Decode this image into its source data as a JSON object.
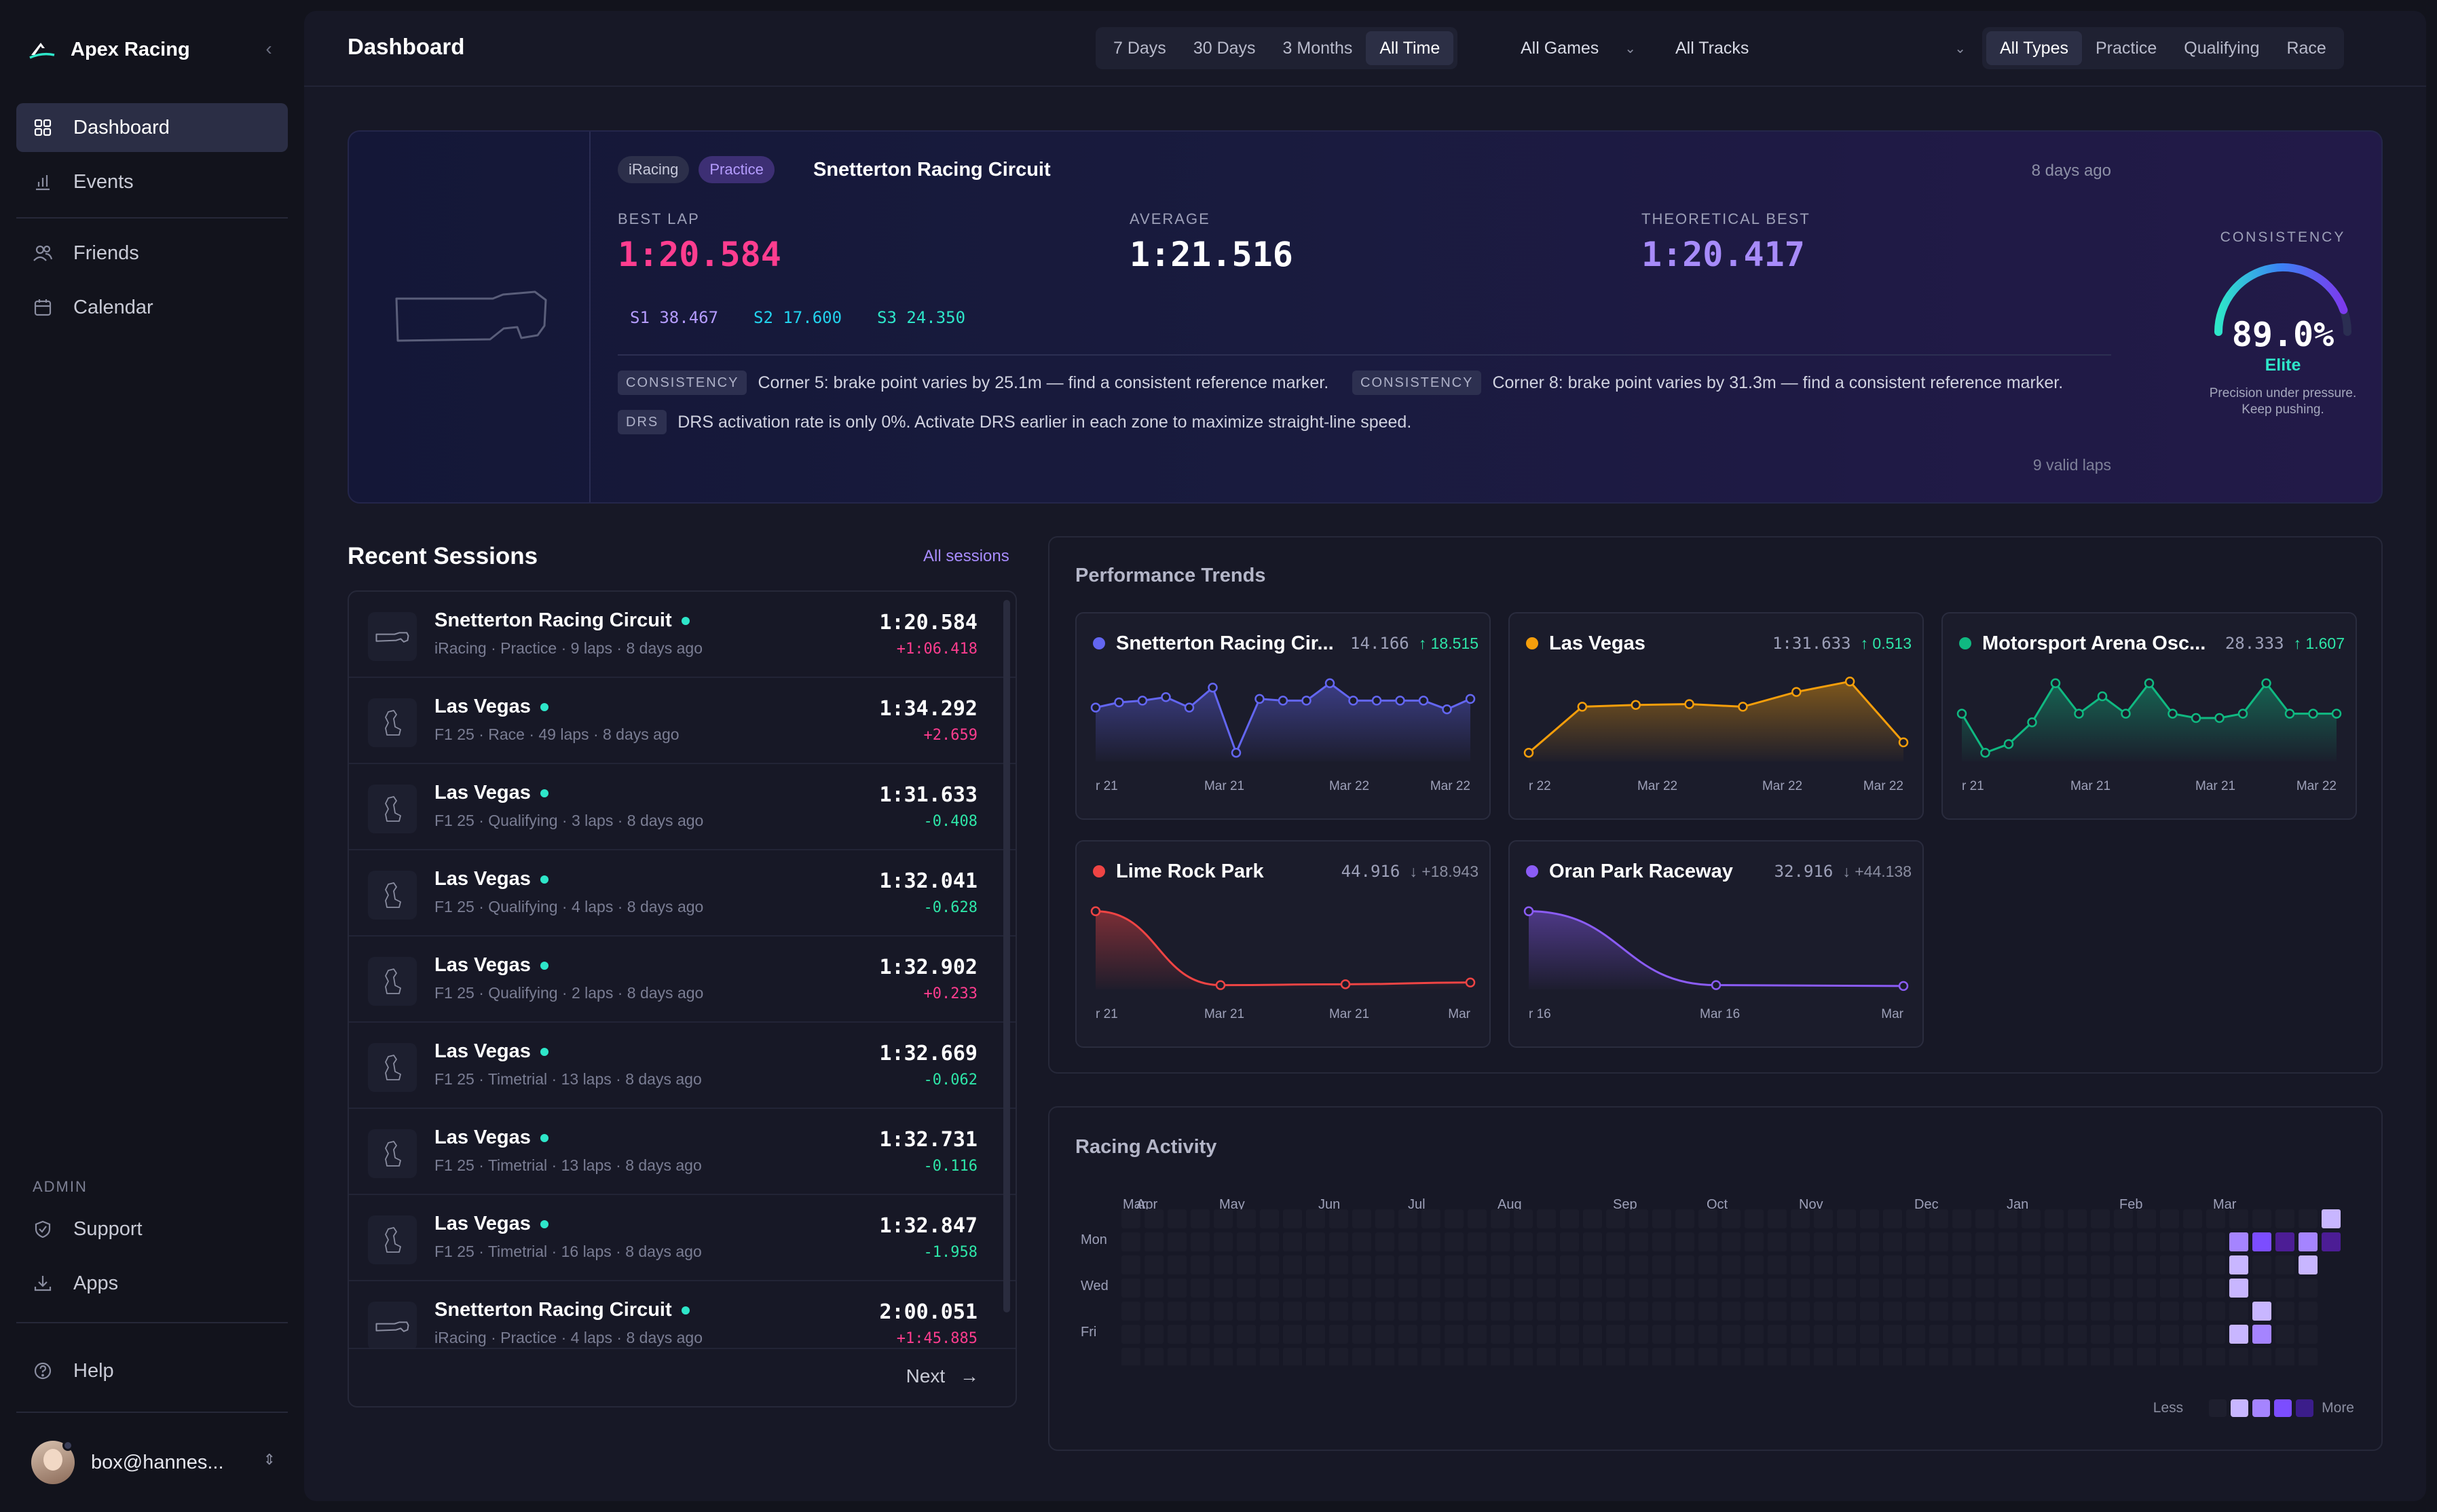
{
  "app": {
    "name": "Apex Racing"
  },
  "sidebar": {
    "items": [
      {
        "label": "Dashboard",
        "icon": "grid-icon",
        "active": true
      },
      {
        "label": "Events",
        "icon": "bar-chart-icon"
      },
      {
        "label": "Friends",
        "icon": "users-icon"
      },
      {
        "label": "Calendar",
        "icon": "calendar-icon"
      }
    ],
    "admin_label": "ADMIN",
    "admin_items": [
      {
        "label": "Support",
        "icon": "shield-icon"
      },
      {
        "label": "Apps",
        "icon": "download-icon"
      }
    ],
    "help": "Help",
    "user": "box@hannes..."
  },
  "header": {
    "title": "Dashboard",
    "ranges": [
      "7 Days",
      "30 Days",
      "3 Months",
      "All Time"
    ],
    "active_range": "All Time",
    "games": "All Games",
    "tracks": "All Tracks",
    "types": [
      "All Types",
      "Practice",
      "Qualifying",
      "Race"
    ],
    "active_type": "All Types"
  },
  "hero": {
    "game": "iRacing",
    "type": "Practice",
    "track": "Snetterton Racing Circuit",
    "ago": "8 days ago",
    "best_label": "BEST LAP",
    "best": "1:20.584",
    "avg_label": "AVERAGE",
    "avg": "1:21.516",
    "theo_label": "THEORETICAL BEST",
    "theo": "1:20.417",
    "sectors": [
      "S1 38.467",
      "S2 17.600",
      "S3 24.350"
    ],
    "tips": [
      {
        "tag": "CONSISTENCY",
        "text": "Corner 5: brake point varies by 25.1m — find a consistent reference marker."
      },
      {
        "tag": "CONSISTENCY",
        "text": "Corner 8: brake point varies by 31.3m — find a consistent reference marker."
      },
      {
        "tag": "DRS",
        "text": "DRS activation rate is only 0%. Activate DRS earlier in each zone to maximize straight-line speed."
      }
    ],
    "valid_laps": "9 valid laps",
    "consistency_label": "CONSISTENCY",
    "consistency": "89.0%",
    "consistency_value": 0.89,
    "tier": "Elite",
    "tagline_1": "Precision under pressure.",
    "tagline_2": "Keep pushing."
  },
  "recent": {
    "title": "Recent Sessions",
    "link": "All sessions",
    "next": "Next",
    "rows": [
      {
        "track": "Snetterton Racing Circuit",
        "meta": "iRacing · Practice · 9 laps · 8 days ago",
        "time": "1:20.584",
        "delta": "+1:06.418",
        "dir": "pos",
        "shape": "snetterton"
      },
      {
        "track": "Las Vegas",
        "meta": "F1 25 · Race · 49 laps · 8 days ago",
        "time": "1:34.292",
        "delta": "+2.659",
        "dir": "pos",
        "shape": "vegas"
      },
      {
        "track": "Las Vegas",
        "meta": "F1 25 · Qualifying · 3 laps · 8 days ago",
        "time": "1:31.633",
        "delta": "-0.408",
        "dir": "neg",
        "shape": "vegas"
      },
      {
        "track": "Las Vegas",
        "meta": "F1 25 · Qualifying · 4 laps · 8 days ago",
        "time": "1:32.041",
        "delta": "-0.628",
        "dir": "neg",
        "shape": "vegas"
      },
      {
        "track": "Las Vegas",
        "meta": "F1 25 · Qualifying · 2 laps · 8 days ago",
        "time": "1:32.902",
        "delta": "+0.233",
        "dir": "pos",
        "shape": "vegas"
      },
      {
        "track": "Las Vegas",
        "meta": "F1 25 · Timetrial · 13 laps · 8 days ago",
        "time": "1:32.669",
        "delta": "-0.062",
        "dir": "neg",
        "shape": "vegas"
      },
      {
        "track": "Las Vegas",
        "meta": "F1 25 · Timetrial · 13 laps · 8 days ago",
        "time": "1:32.731",
        "delta": "-0.116",
        "dir": "neg",
        "shape": "vegas"
      },
      {
        "track": "Las Vegas",
        "meta": "F1 25 · Timetrial · 16 laps · 8 days ago",
        "time": "1:32.847",
        "delta": "-1.958",
        "dir": "neg",
        "shape": "vegas"
      },
      {
        "track": "Snetterton Racing Circuit",
        "meta": "iRacing · Practice · 4 laps · 8 days ago",
        "time": "2:00.051",
        "delta": "+1:45.885",
        "dir": "pos",
        "shape": "snetterton"
      }
    ]
  },
  "trends": {
    "title": "Performance Trends",
    "cards": [
      {
        "name": "Snetterton Racing Cir...",
        "best": "14.166",
        "delta": "↑ 18.515",
        "dir": "up",
        "color": "#6366f1",
        "ticks": [
          "r 21",
          "Mar 21",
          "Mar 22",
          "Mar 22"
        ],
        "values": [
          0.62,
          0.68,
          0.7,
          0.74,
          0.62,
          0.85,
          0.1,
          0.72,
          0.7,
          0.7,
          0.9,
          0.7,
          0.7,
          0.7,
          0.7,
          0.6,
          0.72
        ]
      },
      {
        "name": "Las Vegas",
        "best": "1:31.633",
        "delta": "↑ 0.513",
        "dir": "up",
        "color": "#f59e0b",
        "ticks": [
          "r 22",
          "Mar 22",
          "Mar 22",
          "Mar 22"
        ],
        "values": [
          0.1,
          0.63,
          0.65,
          0.66,
          0.63,
          0.8,
          0.92,
          0.22
        ]
      },
      {
        "name": "Motorsport Arena Osc...",
        "best": "28.333",
        "delta": "↑ 1.607",
        "dir": "up",
        "color": "#10b981",
        "ticks": [
          "r 21",
          "Mar 21",
          "Mar 21",
          "Mar 22"
        ],
        "values": [
          0.55,
          0.1,
          0.2,
          0.45,
          0.9,
          0.55,
          0.75,
          0.55,
          0.9,
          0.55,
          0.5,
          0.5,
          0.55,
          0.9,
          0.55,
          0.55,
          0.55
        ]
      },
      {
        "name": "Lime Rock Park",
        "best": "44.916",
        "delta": "↓ +18.943",
        "dir": "down",
        "color": "#ef4444",
        "ticks": [
          "r 21",
          "Mar 21",
          "Mar 21",
          "Mar"
        ],
        "values": [
          0.9,
          0.05,
          0.06,
          0.08
        ]
      },
      {
        "name": "Oran Park Raceway",
        "best": "32.916",
        "delta": "↓ +44.138",
        "dir": "down",
        "color": "#8b5cf6",
        "ticks": [
          "r 16",
          "Mar 16",
          "Mar"
        ],
        "values": [
          0.9,
          0.05,
          0.04
        ]
      }
    ]
  },
  "activity": {
    "title": "Racing Activity",
    "months": [
      "Mar",
      "Apr",
      "May",
      "Jun",
      "Jul",
      "Aug",
      "Sep",
      "Oct",
      "Nov",
      "Dec",
      "Jan",
      "Feb",
      "Mar"
    ],
    "days": [
      "Mon",
      "Wed",
      "Fri"
    ],
    "less": "Less",
    "more": "More",
    "levels": [
      "#1e1f2e",
      "#c8b6ff",
      "#a584ff",
      "#7c4dff",
      "#4c1d95"
    ]
  }
}
